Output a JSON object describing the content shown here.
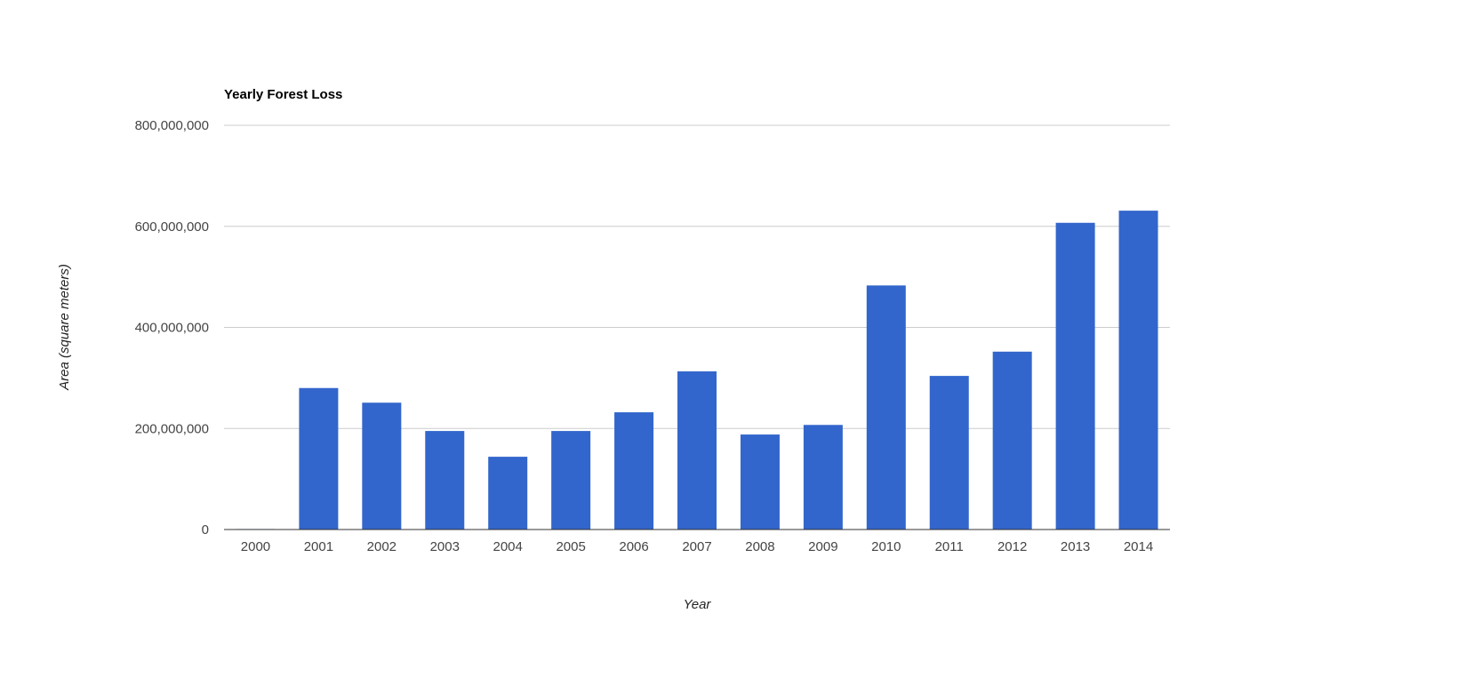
{
  "chart_data": {
    "type": "bar",
    "title": "Yearly Forest Loss",
    "xlabel": "Year",
    "ylabel": "Area (square meters)",
    "categories": [
      "2000",
      "2001",
      "2002",
      "2003",
      "2004",
      "2005",
      "2006",
      "2007",
      "2008",
      "2009",
      "2010",
      "2011",
      "2012",
      "2013",
      "2014"
    ],
    "values": [
      1000000,
      280000000,
      251000000,
      195000000,
      144000000,
      195000000,
      232000000,
      313000000,
      188000000,
      207000000,
      483000000,
      304000000,
      352000000,
      607000000,
      631000000
    ],
    "ylim": [
      0,
      800000000
    ],
    "yticks": [
      0,
      200000000,
      400000000,
      600000000,
      800000000
    ],
    "ytick_labels": [
      "0",
      "200,000,000",
      "400,000,000",
      "600,000,000",
      "800,000,000"
    ],
    "grid": true,
    "legend": "none",
    "colors": {
      "bar": "#3366cc",
      "grid": "#cccccc",
      "axis": "#333333"
    }
  }
}
